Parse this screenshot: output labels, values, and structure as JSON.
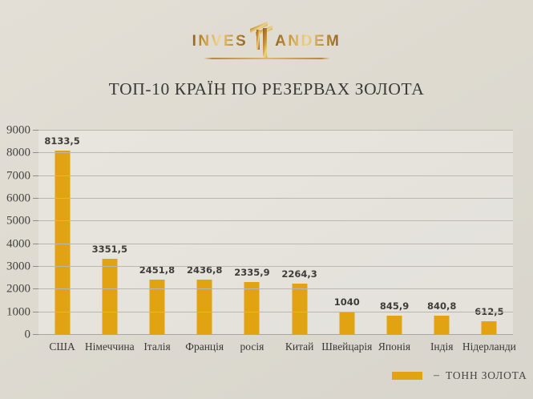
{
  "logo": {
    "text_left": "INVES",
    "text_right": "ANDEM",
    "monogram_icon": "double-t-tandem-icon",
    "gold_dark": "#8a5f1e",
    "gold_mid": "#c9953f",
    "gold_light": "#f0d489"
  },
  "title": "ТОП-10 КРАЇН ПО РЕЗЕРВАХ ЗОЛОТА",
  "chart_data": {
    "type": "bar",
    "title": "ТОП-10 КРАЇН ПО РЕЗЕРВАХ ЗОЛОТА",
    "categories": [
      "США",
      "Німеччина",
      "Італія",
      "Франція",
      "росія",
      "Китай",
      "Швейцарія",
      "Японія",
      "Індія",
      "Нідерланди"
    ],
    "values": [
      8133.5,
      3351.5,
      2451.8,
      2436.8,
      2335.9,
      2264.3,
      1040,
      845.9,
      840.8,
      612.5
    ],
    "value_labels": [
      "8133,5",
      "3351,5",
      "2451,8",
      "2436,8",
      "2335,9",
      "2264,3",
      "1040",
      "845,9",
      "840,8",
      "612,5"
    ],
    "xlabel": "",
    "ylabel": "",
    "ylim": [
      0,
      9000
    ],
    "yticks": [
      0,
      1000,
      2000,
      3000,
      4000,
      5000,
      6000,
      7000,
      8000,
      9000
    ],
    "grid": "horizontal",
    "bar_color": "#e2a313",
    "legend_position": "bottom-right"
  },
  "legend": {
    "swatch_color": "#e2a313",
    "dash": "–",
    "label": "ТОНН ЗОЛОТА"
  }
}
